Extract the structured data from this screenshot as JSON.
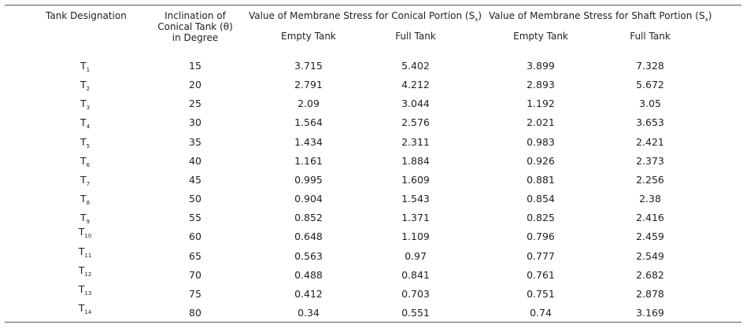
{
  "table": {
    "headers": {
      "designation": "Tank Designation",
      "inclination_line1": "Inclination of",
      "inclination_line2": "Conical Tank (θ)",
      "inclination_line3": "in Degree",
      "conical_group_prefix": "Value of Membrane Stress for Conical Portion (S",
      "conical_group_sub": "x",
      "conical_group_suffix": ")",
      "shaft_group_prefix": "Value of Membrane Stress for Shaft Portion (S",
      "shaft_group_sub": "x",
      "shaft_group_suffix": ")",
      "conical_empty": "Empty Tank",
      "conical_full": "Full Tank",
      "shaft_empty": "Empty Tank",
      "shaft_full": "Full Tank"
    },
    "rows": [
      {
        "t": "T",
        "n": "1",
        "angle": "15",
        "ce": "3.715",
        "cf": "5.402",
        "se": "3.899",
        "sf": "7.328"
      },
      {
        "t": "T",
        "n": "2",
        "angle": "20",
        "ce": "2.791",
        "cf": "4.212",
        "se": "2.893",
        "sf": "5.672"
      },
      {
        "t": "T",
        "n": "3",
        "angle": "25",
        "ce": "2.09",
        "cf": "3.044",
        "se": "1.192",
        "sf": "3.05"
      },
      {
        "t": "T",
        "n": "4",
        "angle": "30",
        "ce": "1.564",
        "cf": "2.576",
        "se": "2.021",
        "sf": "3.653"
      },
      {
        "t": "T",
        "n": "5",
        "angle": "35",
        "ce": "1.434",
        "cf": "2.311",
        "se": "0.983",
        "sf": "2.421"
      },
      {
        "t": "T",
        "n": "6",
        "angle": "40",
        "ce": "1.161",
        "cf": "1.884",
        "se": "0.926",
        "sf": "2.373"
      },
      {
        "t": "T",
        "n": "7",
        "angle": "45",
        "ce": "0.995",
        "cf": "1.609",
        "se": "0.881",
        "sf": "2.256"
      },
      {
        "t": "T",
        "n": "8",
        "angle": "50",
        "ce": "0.904",
        "cf": "1.543",
        "se": "0.854",
        "sf": "2.38"
      },
      {
        "t": "T",
        "n": "9",
        "angle": "55",
        "ce": "0.852",
        "cf": "1.371",
        "se": "0.825",
        "sf": "2.416"
      },
      {
        "t": "T",
        "n": "10",
        "angle": "60",
        "ce": "0.648",
        "cf": "1.109",
        "se": "0.796",
        "sf": "2.459"
      },
      {
        "t": "T",
        "n": "11",
        "angle": "65",
        "ce": "0.563",
        "cf": "0.97",
        "se": "0.777",
        "sf": "2.549"
      },
      {
        "t": "T",
        "n": "12",
        "angle": "70",
        "ce": "0.488",
        "cf": "0.841",
        "se": "0.761",
        "sf": "2.682"
      },
      {
        "t": "T",
        "n": "13",
        "angle": "75",
        "ce": "0.412",
        "cf": "0.703",
        "se": "0.751",
        "sf": "2.878"
      },
      {
        "t": "T",
        "n": "14",
        "angle": "80",
        "ce": "0.34",
        "cf": "0.551",
        "se": "0.74",
        "sf": "3.169"
      }
    ]
  }
}
